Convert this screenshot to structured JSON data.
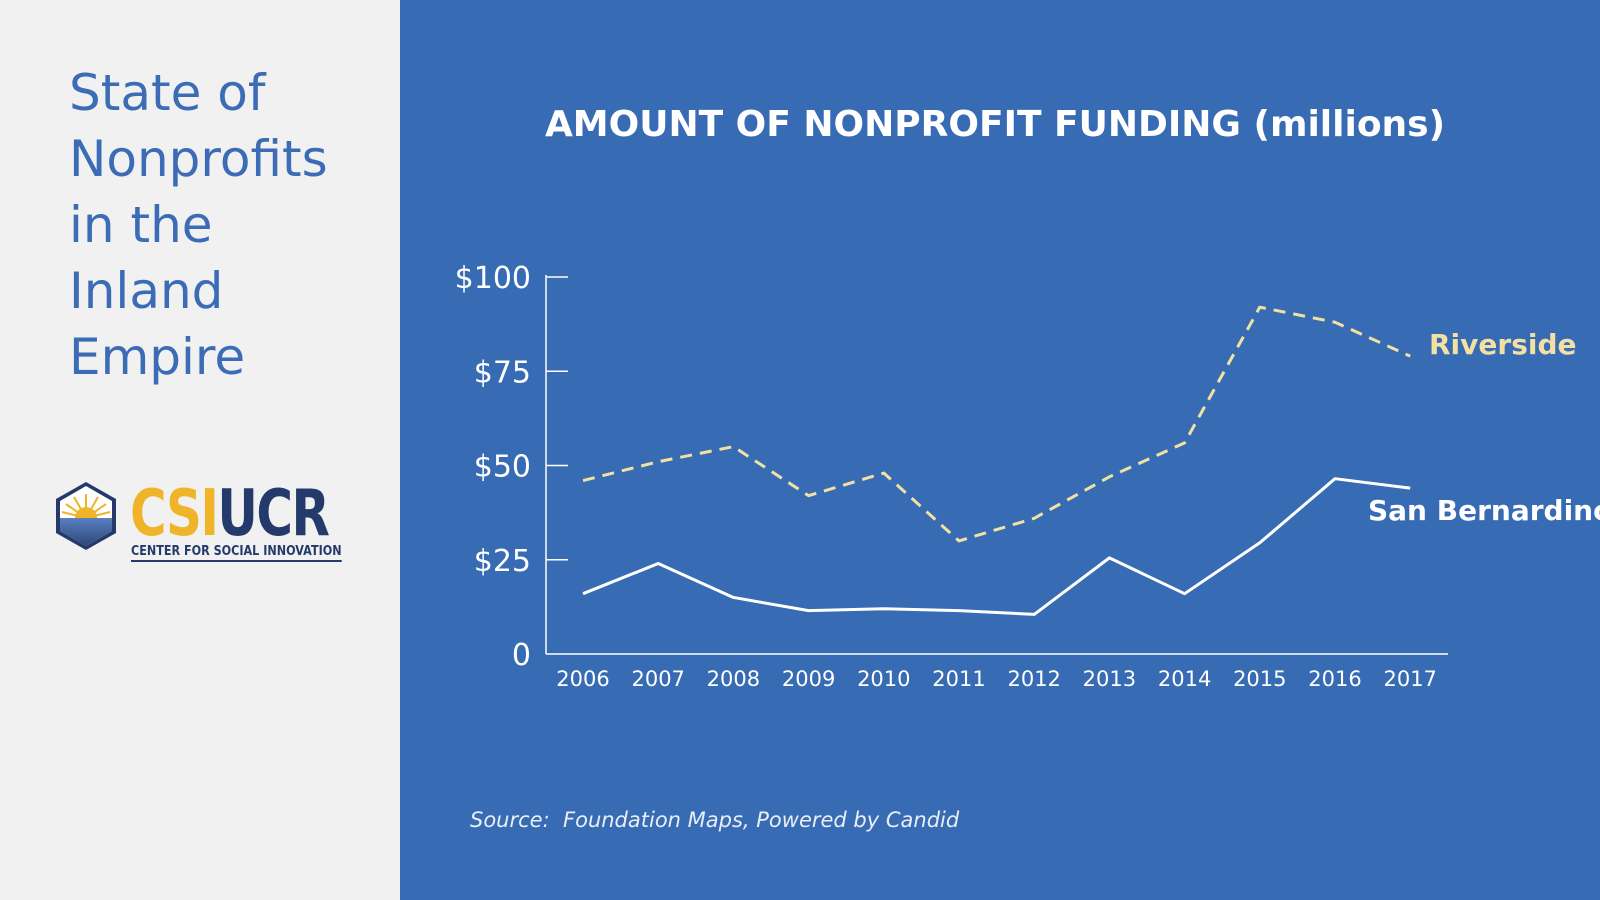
{
  "sidebar": {
    "title_lines": [
      "State of",
      "Nonprofits",
      "in the",
      "Inland",
      "Empire"
    ],
    "logo": {
      "wordmark_part1": "CSI",
      "wordmark_part2": "UCR",
      "tagline": "CENTER FOR SOCIAL INNOVATION"
    }
  },
  "source": "Source:  Foundation Maps, Powered by Candid",
  "colors": {
    "sidebar_bg": "#f1f1f1",
    "panel_bg": "#376bb4",
    "title_blue": "#3b6cb5",
    "riverside": "#f3e0a3",
    "san_bernardino": "#ffffff",
    "logo_gold": "#f0b429",
    "logo_navy": "#243a6b"
  },
  "chart_data": {
    "type": "line",
    "title": "AMOUNT OF NONPROFIT FUNDING (millions)",
    "xlabel": "",
    "ylabel": "",
    "categories": [
      "2006",
      "2007",
      "2008",
      "2009",
      "2010",
      "2011",
      "2012",
      "2013",
      "2014",
      "2015",
      "2016",
      "2017"
    ],
    "y_ticks": [
      0,
      25,
      50,
      75,
      100
    ],
    "y_tick_labels": [
      "0",
      "$25",
      "$50",
      "$75",
      "$100"
    ],
    "ylim": [
      0,
      100
    ],
    "grid": false,
    "series": [
      {
        "name": "Riverside",
        "style": "dashed",
        "color": "#f3e0a3",
        "values": [
          46,
          51,
          55,
          42,
          48,
          30,
          36,
          47,
          56,
          92,
          88,
          79
        ]
      },
      {
        "name": "San Bernardino",
        "style": "solid",
        "color": "#ffffff",
        "values": [
          16,
          24,
          15,
          11.5,
          12,
          11.5,
          10.5,
          25.5,
          16,
          29.5,
          46.5,
          44
        ]
      }
    ]
  }
}
